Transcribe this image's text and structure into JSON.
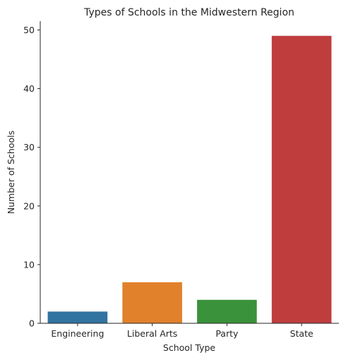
{
  "chart_data": {
    "type": "bar",
    "title": "Types of Schools in the Midwestern Region",
    "xlabel": "School Type",
    "ylabel": "Number of Schools",
    "categories": [
      "Engineering",
      "Liberal Arts",
      "Party",
      "State"
    ],
    "values": [
      2,
      7,
      4,
      49
    ],
    "colors": [
      "#3274a1",
      "#e1812c",
      "#3a923a",
      "#c03d3e"
    ],
    "ylim": [
      0,
      51.5
    ],
    "yticks": [
      0,
      10,
      20,
      30,
      40,
      50
    ],
    "grid": false,
    "legend": "none"
  }
}
